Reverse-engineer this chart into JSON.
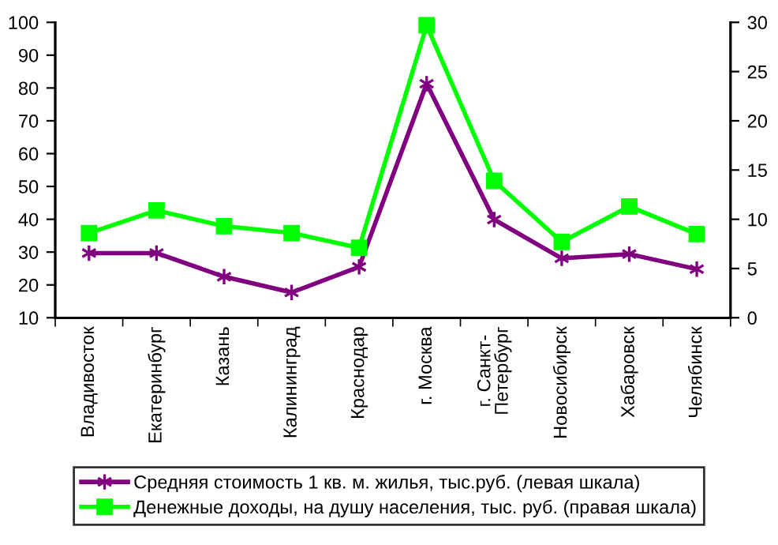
{
  "chart_data": {
    "type": "line",
    "categories": [
      "Владивосток",
      "Екатеринбург",
      "Казань",
      "Калининград",
      "Краснодар",
      "г. Москва",
      "г. Санкт-\nПетербург",
      "Новосибирск",
      "Хабаровск",
      "Челябинск"
    ],
    "series": [
      {
        "name": "Средняя стоимость 1 кв. м. жилья, тыс.руб. (левая шкала)",
        "color": "#800080",
        "marker": "cross",
        "values": [
          29.7,
          29.7,
          22.5,
          17.7,
          25.5,
          81.3,
          39.9,
          28.1,
          29.4,
          24.8
        ]
      },
      {
        "name": "Денежные доходы, на душу населения, тыс. руб. (правая шкала)",
        "color": "#00ff00",
        "marker": "square",
        "axis": "y2",
        "values": [
          8.6,
          10.9,
          9.3,
          8.6,
          7.1,
          29.7,
          13.9,
          7.7,
          11.3,
          8.5
        ]
      }
    ],
    "ylim": [
      10,
      100
    ],
    "yticks": [
      10,
      20,
      30,
      40,
      50,
      60,
      70,
      80,
      90,
      100
    ],
    "y2lim": [
      0,
      30
    ],
    "y2ticks": [
      0,
      5,
      10,
      15,
      20,
      25,
      30
    ],
    "grid": false,
    "legend": "bottom",
    "line_style": "solid"
  }
}
